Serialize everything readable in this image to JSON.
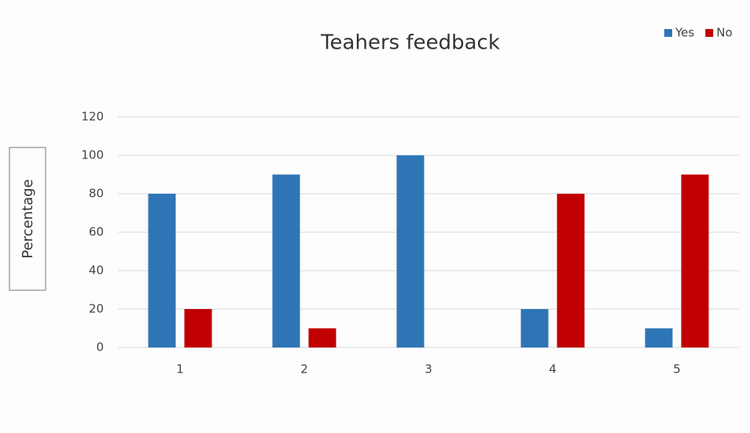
{
  "chart_data": {
    "type": "bar",
    "title": "Teahers feedback",
    "y_label": "Percentage",
    "categories": [
      "1",
      "2",
      "3",
      "4",
      "5"
    ],
    "series": [
      {
        "name": "Yes",
        "color": "#2e75b6",
        "values": [
          80,
          90,
          100,
          20,
          10
        ]
      },
      {
        "name": "No",
        "color": "#c00000",
        "values": [
          20,
          10,
          0,
          80,
          90
        ]
      }
    ],
    "ylim": [
      0,
      120
    ],
    "yticks": [
      0,
      20,
      40,
      60,
      80,
      100,
      120
    ],
    "grid": true,
    "legend": "top-right"
  }
}
